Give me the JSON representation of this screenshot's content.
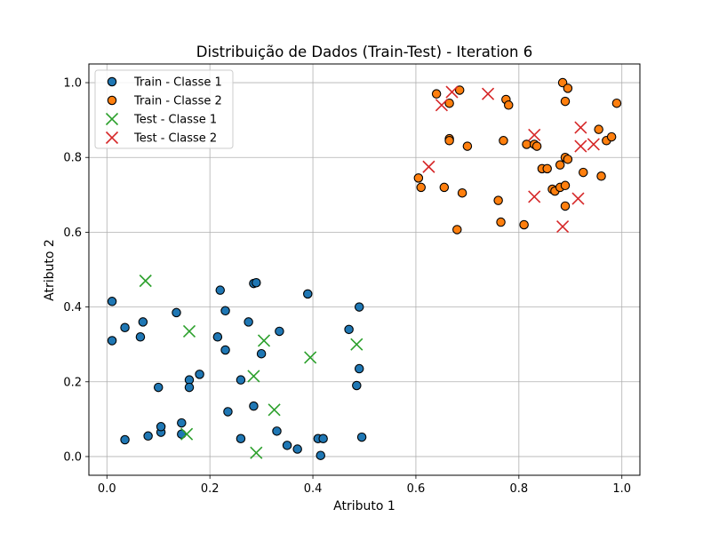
{
  "chart_data": {
    "type": "scatter",
    "title": "Distribuição de Dados (Train-Test) - Iteration 6",
    "xlabel": "Atributo 1",
    "ylabel": "Atributo 2",
    "xlim": [
      -0.035,
      1.035
    ],
    "ylim": [
      -0.05,
      1.05
    ],
    "xticks": [
      "0.0",
      "0.2",
      "0.4",
      "0.6",
      "0.8",
      "1.0"
    ],
    "yticks": [
      "0.0",
      "0.2",
      "0.4",
      "0.6",
      "0.8",
      "1.0"
    ],
    "grid": true,
    "legend_position": "upper-left",
    "series": [
      {
        "name": "Train - Classe 1",
        "marker": "circle",
        "color": "#1f77b4",
        "edge_color": "#000000",
        "points": [
          [
            0.01,
            0.415
          ],
          [
            0.01,
            0.31
          ],
          [
            0.035,
            0.345
          ],
          [
            0.065,
            0.32
          ],
          [
            0.07,
            0.36
          ],
          [
            0.035,
            0.045
          ],
          [
            0.08,
            0.055
          ],
          [
            0.1,
            0.185
          ],
          [
            0.105,
            0.065
          ],
          [
            0.105,
            0.08
          ],
          [
            0.135,
            0.385
          ],
          [
            0.145,
            0.06
          ],
          [
            0.145,
            0.09
          ],
          [
            0.16,
            0.205
          ],
          [
            0.16,
            0.185
          ],
          [
            0.18,
            0.22
          ],
          [
            0.215,
            0.32
          ],
          [
            0.22,
            0.445
          ],
          [
            0.23,
            0.285
          ],
          [
            0.23,
            0.39
          ],
          [
            0.235,
            0.12
          ],
          [
            0.26,
            0.205
          ],
          [
            0.26,
            0.048
          ],
          [
            0.275,
            0.36
          ],
          [
            0.285,
            0.135
          ],
          [
            0.285,
            0.463
          ],
          [
            0.29,
            0.465
          ],
          [
            0.3,
            0.275
          ],
          [
            0.33,
            0.068
          ],
          [
            0.335,
            0.335
          ],
          [
            0.35,
            0.03
          ],
          [
            0.37,
            0.02
          ],
          [
            0.39,
            0.435
          ],
          [
            0.41,
            0.048
          ],
          [
            0.415,
            0.003
          ],
          [
            0.42,
            0.048
          ],
          [
            0.47,
            0.34
          ],
          [
            0.485,
            0.19
          ],
          [
            0.49,
            0.4
          ],
          [
            0.49,
            0.235
          ],
          [
            0.495,
            0.052
          ]
        ]
      },
      {
        "name": "Train - Classe 2",
        "marker": "circle",
        "color": "#ff7f0e",
        "edge_color": "#000000",
        "points": [
          [
            0.605,
            0.745
          ],
          [
            0.61,
            0.72
          ],
          [
            0.64,
            0.97
          ],
          [
            0.655,
            0.72
          ],
          [
            0.665,
            0.945
          ],
          [
            0.665,
            0.85
          ],
          [
            0.665,
            0.845
          ],
          [
            0.68,
            0.607
          ],
          [
            0.685,
            0.98
          ],
          [
            0.69,
            0.705
          ],
          [
            0.7,
            0.83
          ],
          [
            0.76,
            0.685
          ],
          [
            0.765,
            0.627
          ],
          [
            0.77,
            0.845
          ],
          [
            0.775,
            0.955
          ],
          [
            0.78,
            0.94
          ],
          [
            0.81,
            0.62
          ],
          [
            0.815,
            0.835
          ],
          [
            0.83,
            0.835
          ],
          [
            0.835,
            0.83
          ],
          [
            0.845,
            0.77
          ],
          [
            0.855,
            0.77
          ],
          [
            0.865,
            0.715
          ],
          [
            0.87,
            0.71
          ],
          [
            0.88,
            0.78
          ],
          [
            0.88,
            0.72
          ],
          [
            0.885,
            1.0
          ],
          [
            0.89,
            0.95
          ],
          [
            0.89,
            0.8
          ],
          [
            0.89,
            0.725
          ],
          [
            0.89,
            0.67
          ],
          [
            0.895,
            0.985
          ],
          [
            0.895,
            0.795
          ],
          [
            0.925,
            0.76
          ],
          [
            0.955,
            0.875
          ],
          [
            0.96,
            0.75
          ],
          [
            0.97,
            0.845
          ],
          [
            0.98,
            0.855
          ],
          [
            0.99,
            0.945
          ]
        ]
      },
      {
        "name": "Test - Classe 1",
        "marker": "x",
        "color": "#2ca02c",
        "points": [
          [
            0.075,
            0.47
          ],
          [
            0.155,
            0.06
          ],
          [
            0.16,
            0.335
          ],
          [
            0.285,
            0.215
          ],
          [
            0.29,
            0.01
          ],
          [
            0.305,
            0.31
          ],
          [
            0.325,
            0.125
          ],
          [
            0.395,
            0.265
          ],
          [
            0.485,
            0.3
          ]
        ]
      },
      {
        "name": "Test - Classe 2",
        "marker": "x",
        "color": "#d62728",
        "points": [
          [
            0.625,
            0.775
          ],
          [
            0.65,
            0.94
          ],
          [
            0.67,
            0.975
          ],
          [
            0.74,
            0.97
          ],
          [
            0.83,
            0.86
          ],
          [
            0.83,
            0.695
          ],
          [
            0.885,
            0.615
          ],
          [
            0.915,
            0.69
          ],
          [
            0.92,
            0.88
          ],
          [
            0.92,
            0.83
          ],
          [
            0.945,
            0.835
          ]
        ]
      }
    ]
  }
}
